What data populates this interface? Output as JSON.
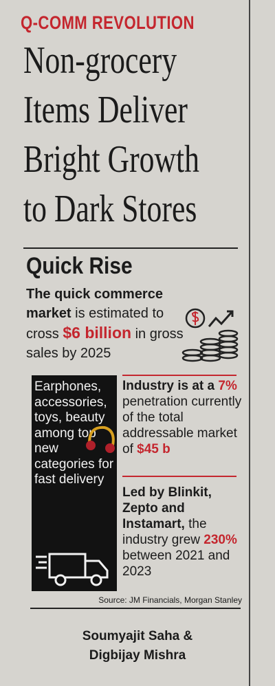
{
  "kicker": "Q-COMM REVOLUTION",
  "headline": {
    "lines": [
      "Non-grocery",
      "Items Deliver",
      "Bright Growth",
      "to Dark Stores"
    ]
  },
  "section": {
    "title": "Quick Rise",
    "intro": {
      "lead": "The quick commerce market",
      "text1": "is estimated to cross",
      "highlight": "$6 billion",
      "text2": "in gross sales by 2025"
    }
  },
  "box": {
    "text": "Earphones, accessories, toys, beauty among top new categories for fast delivery"
  },
  "facts": [
    {
      "lead": "Industry is at a",
      "highlight": "7%",
      "text": "penetration currently of the total addressable market of",
      "highlight2": "$45 b"
    },
    {
      "lead": "Led by Blinkit, Zepto and Instamart,",
      "text": "the industry grew",
      "highlight": "230%",
      "text2": "between 2021 and 2023"
    }
  ],
  "source": "Source: JM Financials, Morgan Stanley",
  "byline": {
    "line1": "Soumyajit Saha &",
    "line2": "Digbijay Mishra"
  }
}
